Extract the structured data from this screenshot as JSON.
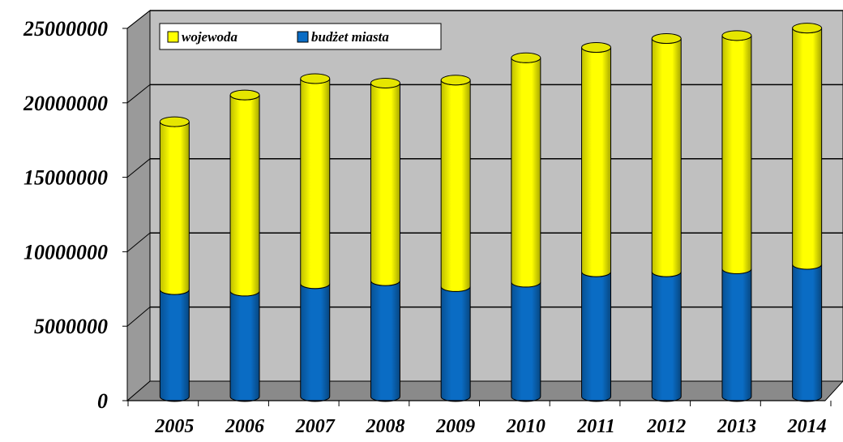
{
  "chart_data": {
    "type": "bar",
    "stacked": true,
    "style": "3d-cylinder",
    "categories": [
      "2005",
      "2006",
      "2007",
      "2008",
      "2009",
      "2010",
      "2011",
      "2012",
      "2013",
      "2014"
    ],
    "series": [
      {
        "name": "budżet miasta",
        "color": "#0a6cc4",
        "values": [
          7200000,
          7100000,
          7600000,
          7800000,
          7400000,
          7700000,
          8400000,
          8400000,
          8600000,
          8900000
        ]
      },
      {
        "name": "wojewoda",
        "color": "#ffff00",
        "values": [
          11300000,
          13200000,
          13800000,
          13300000,
          13900000,
          15100000,
          15100000,
          15700000,
          15700000,
          15900000
        ]
      }
    ],
    "y_ticks": [
      "0",
      "5000000",
      "10000000",
      "15000000",
      "20000000",
      "25000000"
    ],
    "ylim": [
      0,
      25000000
    ],
    "grid": true,
    "legend_position": "top-left"
  }
}
